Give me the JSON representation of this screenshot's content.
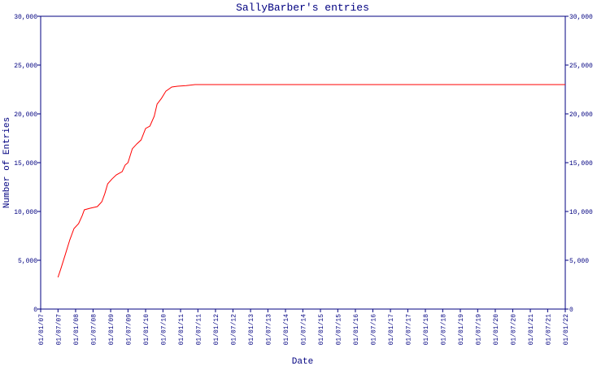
{
  "chart_data": {
    "type": "line",
    "title": "SallyBarber's entries",
    "x_label": "Date",
    "y_label": "Number of Entries",
    "xlim": [
      "2007-01-01",
      "2022-01-01"
    ],
    "xticks": [
      {
        "value": "2007-01-01",
        "label": "01/01/07"
      },
      {
        "value": "2007-07-01",
        "label": "01/07/07"
      },
      {
        "value": "2008-01-01",
        "label": "01/01/08"
      },
      {
        "value": "2008-07-01",
        "label": "01/07/08"
      },
      {
        "value": "2009-01-01",
        "label": "01/01/09"
      },
      {
        "value": "2009-07-01",
        "label": "01/07/09"
      },
      {
        "value": "2010-01-01",
        "label": "01/01/10"
      },
      {
        "value": "2010-07-01",
        "label": "01/07/10"
      },
      {
        "value": "2011-01-01",
        "label": "01/01/11"
      },
      {
        "value": "2011-07-01",
        "label": "01/07/11"
      },
      {
        "value": "2012-01-01",
        "label": "01/01/12"
      },
      {
        "value": "2012-07-01",
        "label": "01/07/12"
      },
      {
        "value": "2013-01-01",
        "label": "01/01/13"
      },
      {
        "value": "2013-07-01",
        "label": "01/07/13"
      },
      {
        "value": "2014-01-01",
        "label": "01/01/14"
      },
      {
        "value": "2014-07-01",
        "label": "01/07/14"
      },
      {
        "value": "2015-01-01",
        "label": "01/01/15"
      },
      {
        "value": "2015-07-01",
        "label": "01/07/15"
      },
      {
        "value": "2016-01-01",
        "label": "01/01/16"
      },
      {
        "value": "2016-07-01",
        "label": "01/07/16"
      },
      {
        "value": "2017-01-01",
        "label": "01/01/17"
      },
      {
        "value": "2017-07-01",
        "label": "01/07/17"
      },
      {
        "value": "2018-01-01",
        "label": "01/01/18"
      },
      {
        "value": "2018-07-01",
        "label": "01/07/18"
      },
      {
        "value": "2019-01-01",
        "label": "01/01/19"
      },
      {
        "value": "2019-07-01",
        "label": "01/07/19"
      },
      {
        "value": "2020-01-01",
        "label": "01/01/20"
      },
      {
        "value": "2020-07-01",
        "label": "01/07/20"
      },
      {
        "value": "2021-01-01",
        "label": "01/01/21"
      },
      {
        "value": "2021-07-01",
        "label": "01/07/21"
      },
      {
        "value": "2022-01-01",
        "label": "01/01/22"
      }
    ],
    "ylim": [
      0,
      30000
    ],
    "yticks": [
      0,
      {
        "value": 5000,
        "label": "5,000"
      },
      {
        "value": 10000,
        "label": "10,000"
      },
      {
        "value": 15000,
        "label": "15,000"
      },
      {
        "value": 20000,
        "label": "20,000"
      },
      {
        "value": 25000,
        "label": "25,000"
      },
      {
        "value": 30000,
        "label": "30,000"
      }
    ],
    "y2lim": [
      0,
      30000
    ],
    "y2ticks": [
      0,
      {
        "value": 5000,
        "label": "5,000"
      },
      {
        "value": 10000,
        "label": "10,000"
      },
      {
        "value": 15000,
        "label": "15,000"
      },
      {
        "value": 20000,
        "label": "20,000"
      },
      {
        "value": 25000,
        "label": "25,000"
      },
      {
        "value": 30000,
        "label": "30,000"
      }
    ],
    "axis_color": "#000080",
    "x": [
      "2007-07-01",
      "2007-08-01",
      "2007-09-15",
      "2007-11-01",
      "2007-12-15",
      "2008-02-01",
      "2008-03-10",
      "2008-04-01",
      "2008-06-01",
      "2008-08-15",
      "2008-10-01",
      "2008-11-01",
      "2008-12-01",
      "2009-01-15",
      "2009-03-01",
      "2009-05-01",
      "2009-06-01",
      "2009-07-01",
      "2009-08-15",
      "2009-10-01",
      "2009-11-15",
      "2010-01-01",
      "2010-02-15",
      "2010-04-01",
      "2010-05-01",
      "2010-06-15",
      "2010-08-01",
      "2010-10-01",
      "2010-12-01",
      "2011-03-01",
      "2011-06-01",
      "2022-01-01"
    ],
    "series": [
      {
        "name": "entries",
        "color": "#ff0000",
        "values": [
          3250,
          4170,
          5580,
          7080,
          8250,
          8750,
          9580,
          10170,
          10330,
          10500,
          11000,
          11830,
          12830,
          13330,
          13750,
          14080,
          14750,
          15000,
          16420,
          16920,
          17330,
          18500,
          18750,
          19750,
          21000,
          21580,
          22330,
          22750,
          22830,
          22900,
          23000,
          23000
        ]
      }
    ]
  }
}
